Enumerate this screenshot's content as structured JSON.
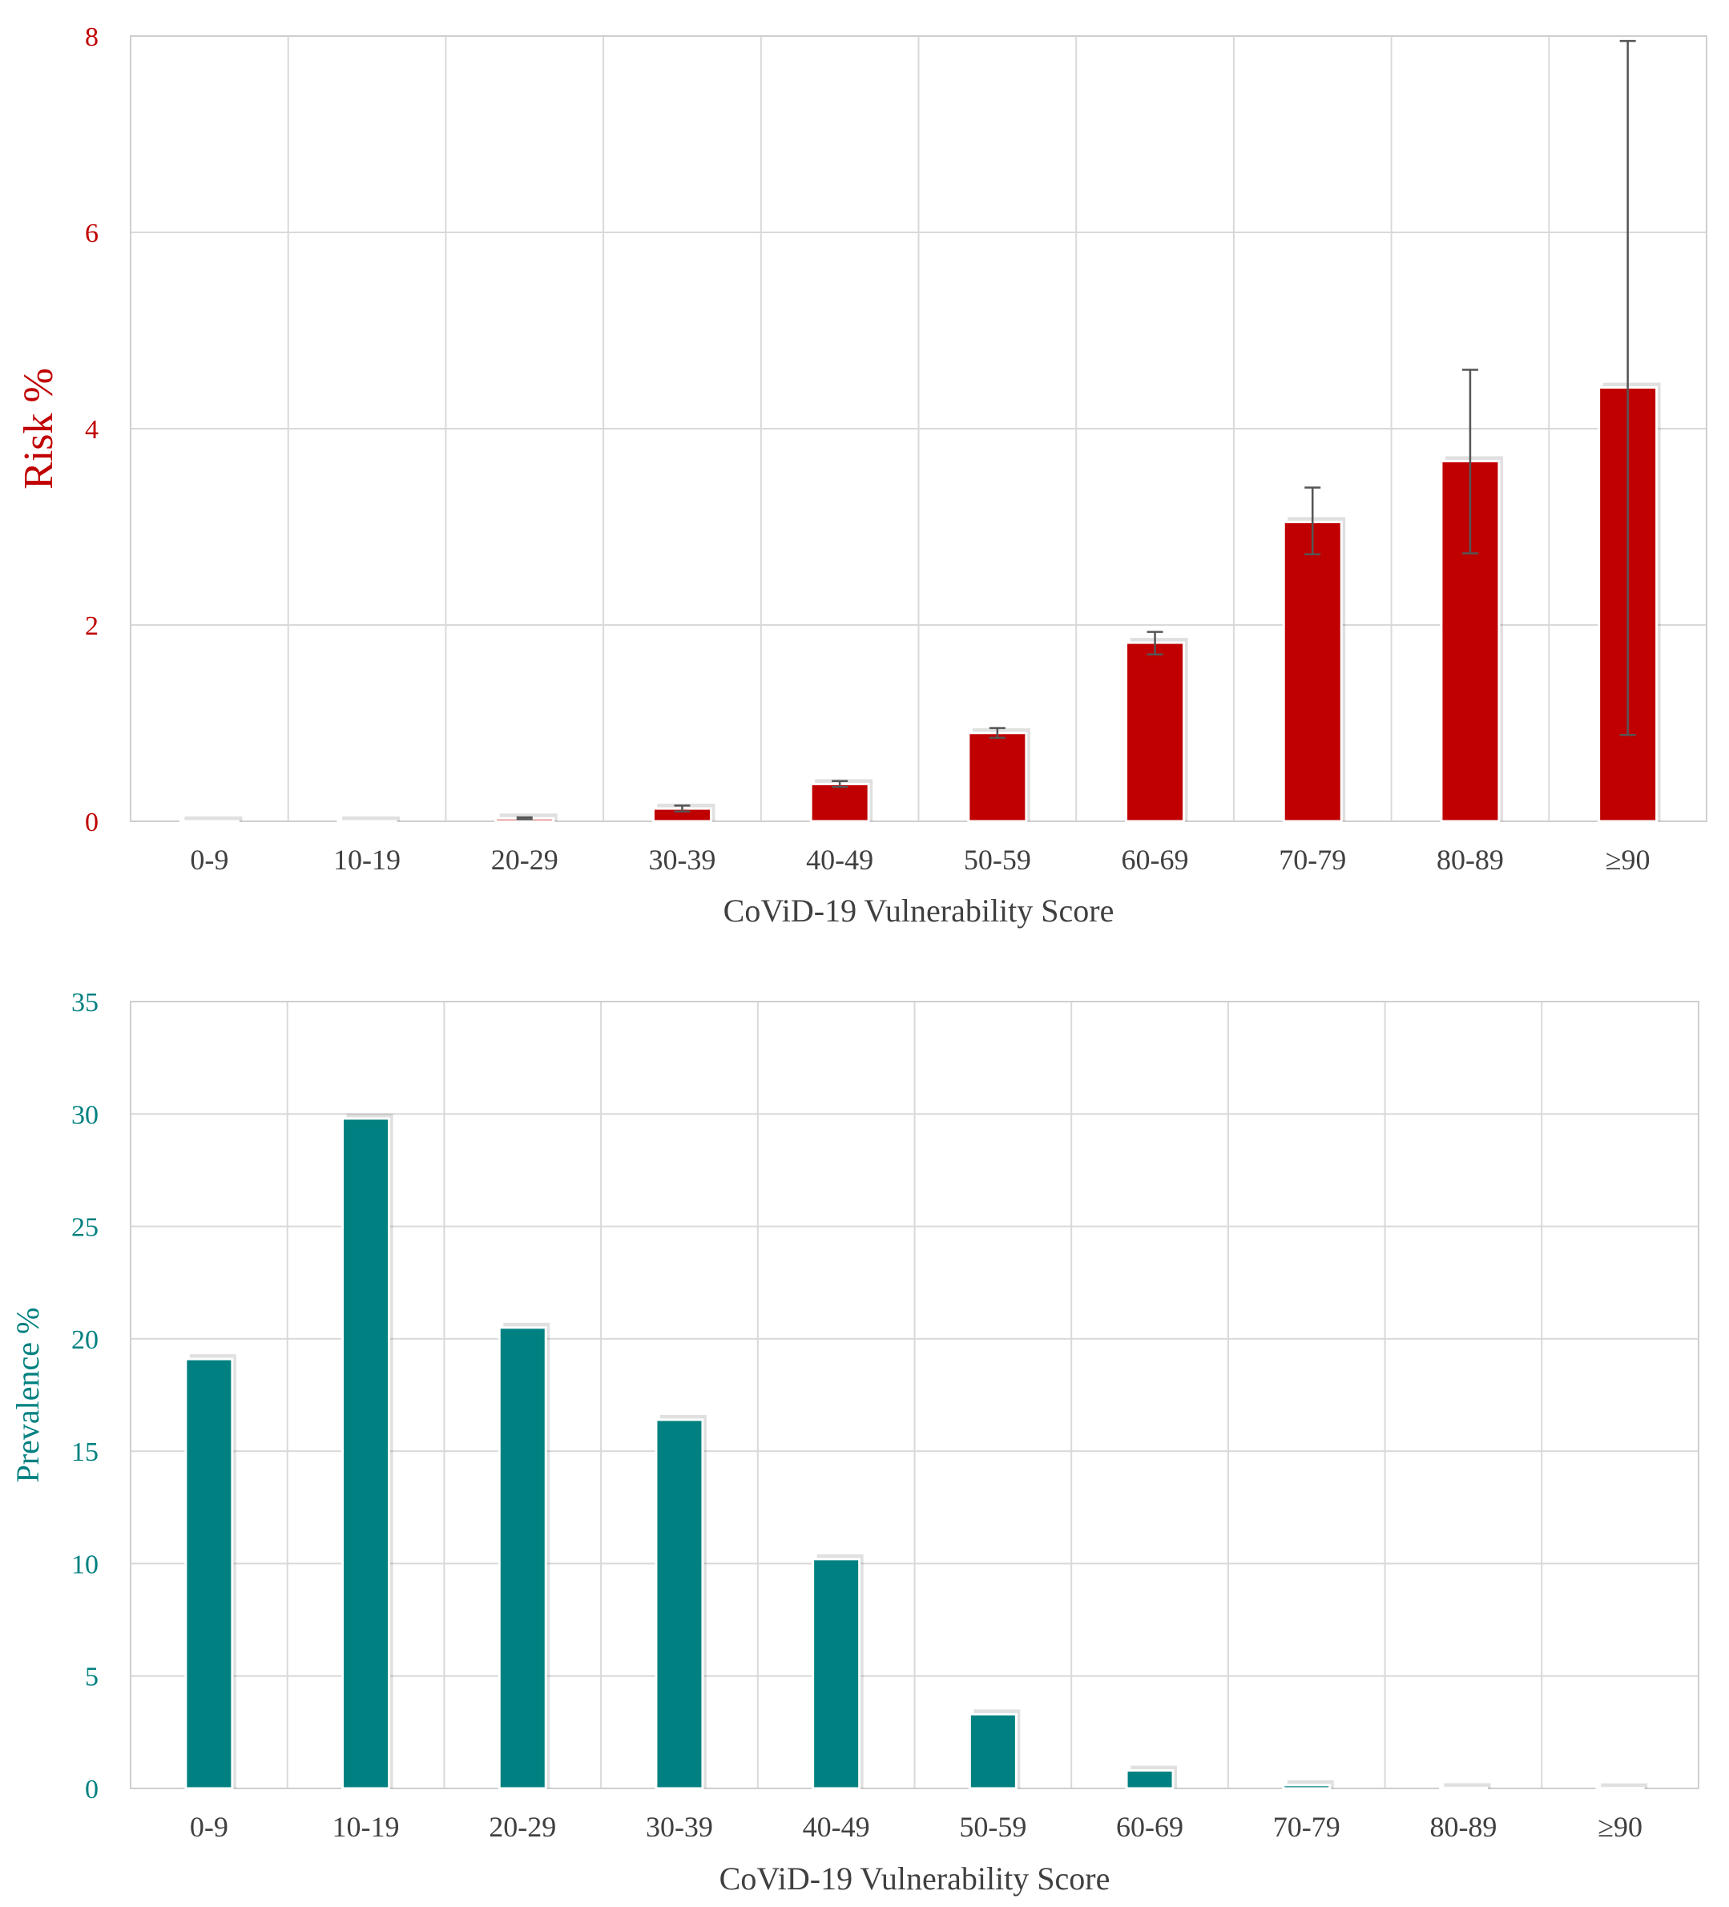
{
  "chart_data": [
    {
      "type": "bar",
      "categories": [
        "0-9",
        "10-19",
        "20-29",
        "30-39",
        "40-49",
        "50-59",
        "60-69",
        "70-79",
        "80-89",
        "≥90"
      ],
      "values": [
        0.0,
        0.0,
        0.03,
        0.13,
        0.38,
        0.9,
        1.82,
        3.05,
        3.67,
        4.42
      ],
      "error_low": [
        0.0,
        0.0,
        0.02,
        0.1,
        0.35,
        0.85,
        1.7,
        2.72,
        2.73,
        0.88
      ],
      "error_high": [
        0.0,
        0.0,
        0.04,
        0.16,
        0.41,
        0.95,
        1.93,
        3.4,
        4.6,
        7.95
      ],
      "xlabel": "CoViD-19 Vulnerability Score",
      "ylabel": "Risk %",
      "ylim": [
        0,
        8
      ],
      "yticks": [
        0,
        2,
        4,
        6,
        8
      ],
      "grid": true,
      "color": "#c00000",
      "label_color": "#c00000"
    },
    {
      "type": "bar",
      "categories": [
        "0-9",
        "10-19",
        "20-29",
        "30-39",
        "40-49",
        "50-59",
        "60-69",
        "70-79",
        "80-89",
        "≥90"
      ],
      "values": [
        19.1,
        29.8,
        20.5,
        16.4,
        10.2,
        3.3,
        0.8,
        0.15,
        0.02,
        0.01
      ],
      "xlabel": "CoViD-19 Vulnerability Score",
      "ylabel": "Prevalence %",
      "ylim": [
        0,
        35
      ],
      "yticks": [
        0,
        5,
        10,
        15,
        20,
        25,
        30,
        35
      ],
      "grid": true,
      "color": "#008080",
      "label_color": "#008080"
    }
  ]
}
